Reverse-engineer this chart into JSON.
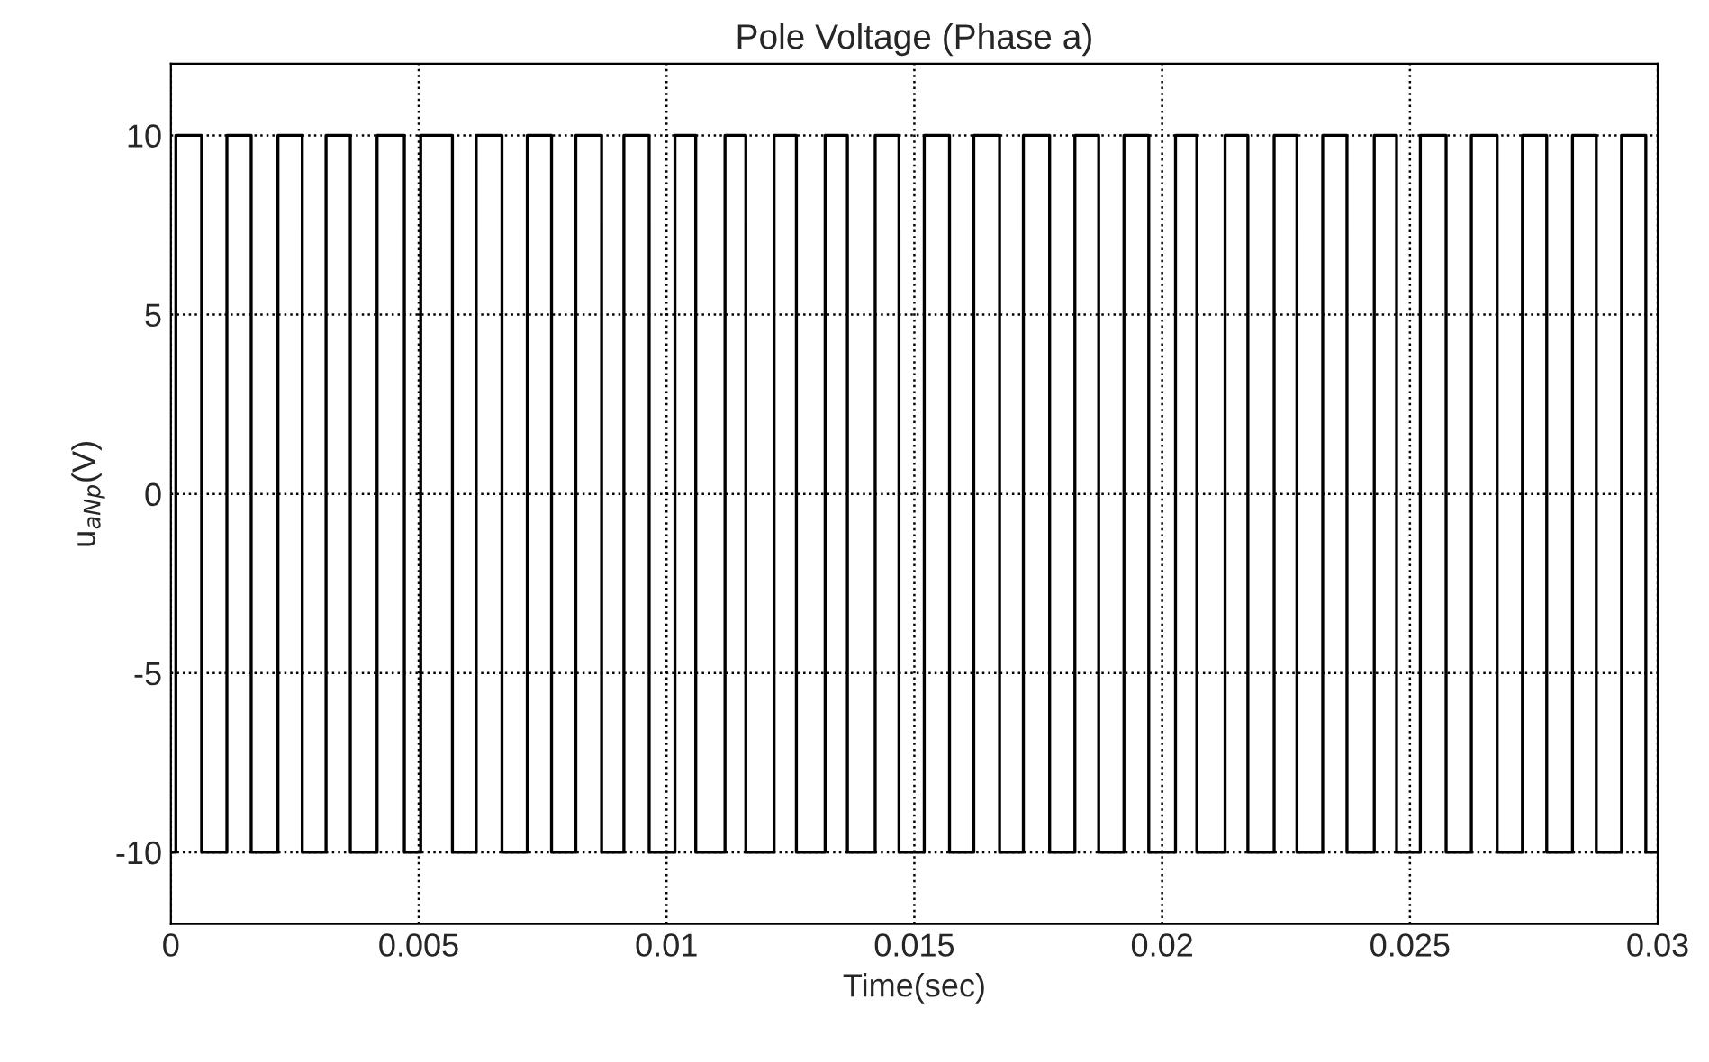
{
  "chart_data": {
    "type": "step",
    "title": "Pole Voltage (Phase a)",
    "xlabel": "Time(sec)",
    "ylabel": "u$_{aNp}$(V)",
    "xlim": [
      0,
      0.03
    ],
    "xticks": [
      0,
      0.005,
      0.01,
      0.015,
      0.02,
      0.025,
      0.03
    ],
    "ylim": [
      -12,
      12
    ],
    "yticks": [
      -10,
      -5,
      0,
      5,
      10
    ],
    "grid": true,
    "legend": false,
    "series": [
      {
        "color": "#000000",
        "x": [
          0,
          0.0001,
          0.00062,
          0.00113,
          0.00162,
          0.00216,
          0.00265,
          0.00313,
          0.00362,
          0.00416,
          0.00471,
          0.00504,
          0.00568,
          0.00616,
          0.00668,
          0.00719,
          0.00768,
          0.00817,
          0.00869,
          0.00914,
          0.00965,
          0.01017,
          0.01059,
          0.01118,
          0.0116,
          0.01217,
          0.01262,
          0.0132,
          0.01365,
          0.01421,
          0.01469,
          0.0152,
          0.01571,
          0.0162,
          0.01672,
          0.0172,
          0.01773,
          0.01824,
          0.01872,
          0.01923,
          0.01973,
          0.02027,
          0.0207,
          0.02127,
          0.02173,
          0.02226,
          0.02272,
          0.02324,
          0.02373,
          0.02428,
          0.02473,
          0.02521,
          0.02573,
          0.02624,
          0.02676,
          0.02727,
          0.02776,
          0.02828,
          0.02876,
          0.02927,
          0.02976,
          0.03
        ],
        "values": [
          -10,
          10,
          -10,
          10,
          -10,
          10,
          -10,
          10,
          -10,
          10,
          -10,
          10,
          -10,
          10,
          -10,
          10,
          -10,
          10,
          -10,
          10,
          -10,
          10,
          -10,
          10,
          -10,
          10,
          -10,
          10,
          -10,
          10,
          -10,
          10,
          -10,
          10,
          -10,
          10,
          -10,
          10,
          -10,
          10,
          -10,
          10,
          -10,
          10,
          -10,
          10,
          -10,
          10,
          -10,
          10,
          -10,
          10,
          -10,
          10,
          -10,
          10,
          -10,
          10,
          -10,
          10,
          -10,
          -10
        ]
      }
    ]
  }
}
